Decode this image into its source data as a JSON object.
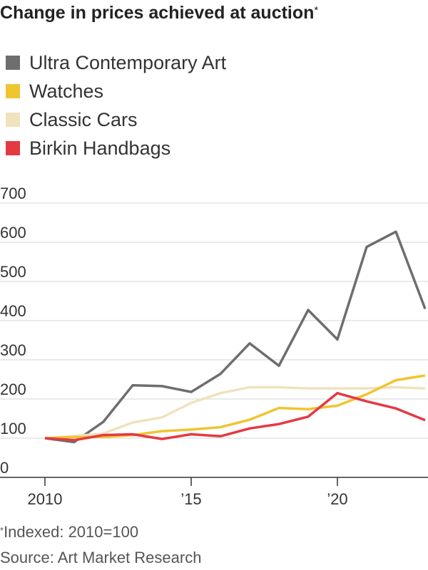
{
  "title": "Change in prices achieved at auction",
  "title_marker": "*",
  "footnote": {
    "marker": "*",
    "text": "Indexed: 2010=100"
  },
  "source": "Source: Art Market Research",
  "colors": {
    "ultra_contemporary_art": "#6e6e6e",
    "watches": "#efc531",
    "classic_cars": "#efe2bd",
    "birkin_handbags": "#e53942",
    "gridline": "#d6d6d6",
    "axis": "#333333"
  },
  "chart_data": {
    "type": "line",
    "title": "Change in prices achieved at auction",
    "xlabel": "",
    "ylabel": "",
    "x": [
      2010,
      2011,
      2012,
      2013,
      2014,
      2015,
      2016,
      2017,
      2018,
      2019,
      2020,
      2021,
      2022,
      2023
    ],
    "xlim": [
      2010,
      2023
    ],
    "ylim": [
      0,
      700
    ],
    "x_ticks": [
      {
        "value": 2010,
        "label": "2010"
      },
      {
        "value": 2015,
        "label": "’15"
      },
      {
        "value": 2020,
        "label": "’20"
      }
    ],
    "y_ticks": [
      {
        "value": 0,
        "label": "0"
      },
      {
        "value": 100,
        "label": "100"
      },
      {
        "value": 200,
        "label": "200"
      },
      {
        "value": 300,
        "label": "300"
      },
      {
        "value": 400,
        "label": "400"
      },
      {
        "value": 500,
        "label": "500"
      },
      {
        "value": 600,
        "label": "600"
      },
      {
        "value": 700,
        "label": "700"
      }
    ],
    "grid": true,
    "legend_position": "top-left",
    "series": [
      {
        "name": "Ultra Contemporary Art",
        "key": "ultra_contemporary_art",
        "values": [
          100,
          90,
          142,
          235,
          233,
          218,
          264,
          342,
          285,
          427,
          352,
          588,
          627,
          430
        ]
      },
      {
        "name": "Watches",
        "key": "watches",
        "values": [
          100,
          103,
          103,
          108,
          118,
          122,
          128,
          147,
          177,
          174,
          183,
          212,
          248,
          260
        ]
      },
      {
        "name": "Classic Cars",
        "key": "classic_cars",
        "values": [
          100,
          105,
          112,
          140,
          153,
          190,
          215,
          230,
          230,
          227,
          227,
          227,
          230,
          227
        ]
      },
      {
        "name": "Birkin Handbags",
        "key": "birkin_handbags",
        "values": [
          100,
          95,
          108,
          110,
          98,
          110,
          105,
          125,
          136,
          155,
          215,
          194,
          176,
          146
        ]
      }
    ]
  }
}
